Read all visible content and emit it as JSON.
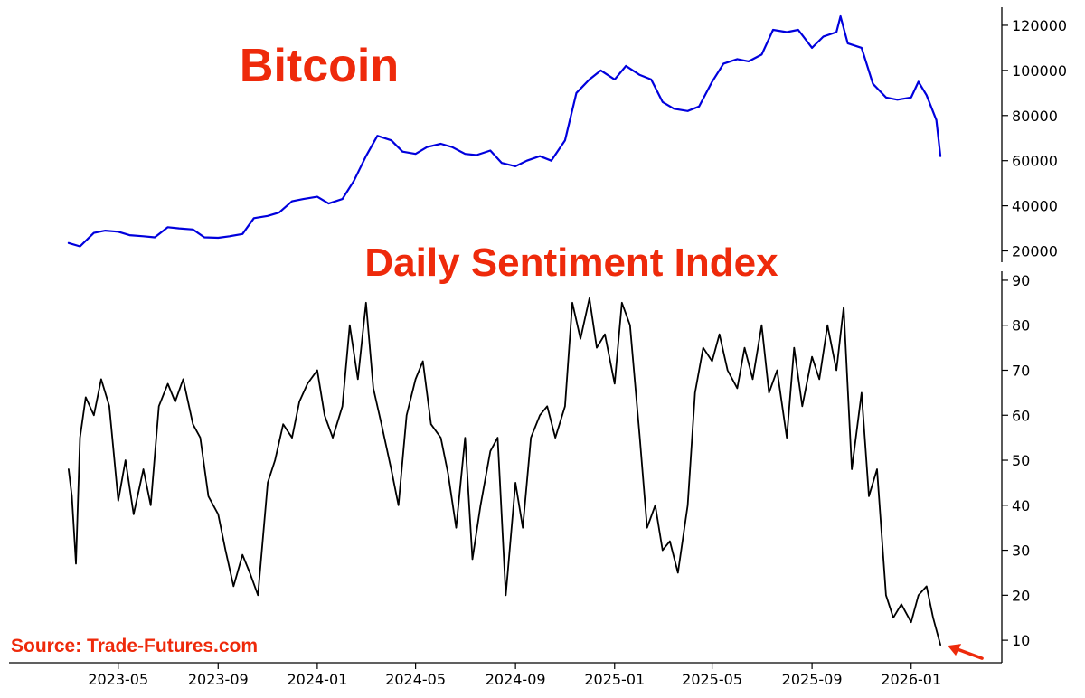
{
  "source": "Source: Trade-Futures.com",
  "colors": {
    "title": "#ee2a0b",
    "bitcoin_line": "#0000dd",
    "sentiment_line": "#000000",
    "arrow": "#ee2a0b"
  },
  "x_ticks": [
    "2023-05",
    "2023-09",
    "2024-01",
    "2024-05",
    "2024-09",
    "2025-01",
    "2025-05",
    "2025-09",
    "2026-01"
  ],
  "chart_data": [
    {
      "type": "line",
      "title": "Bitcoin",
      "xlabel": "",
      "ylabel": "",
      "ylim": [
        15000,
        128000
      ],
      "yticks": [
        "20000",
        "40000",
        "60000",
        "80000",
        "100000",
        "120000"
      ],
      "ytick_values": [
        20000,
        40000,
        60000,
        80000,
        100000,
        120000
      ],
      "grid": false,
      "x": [
        "2023-03-01",
        "2023-03-15",
        "2023-04-01",
        "2023-04-15",
        "2023-05-01",
        "2023-05-15",
        "2023-06-01",
        "2023-06-15",
        "2023-07-01",
        "2023-07-15",
        "2023-08-01",
        "2023-08-15",
        "2023-09-01",
        "2023-09-15",
        "2023-10-01",
        "2023-10-15",
        "2023-11-01",
        "2023-11-15",
        "2023-12-01",
        "2023-12-15",
        "2024-01-01",
        "2024-01-15",
        "2024-02-01",
        "2024-02-15",
        "2024-03-01",
        "2024-03-15",
        "2024-04-01",
        "2024-04-15",
        "2024-05-01",
        "2024-05-15",
        "2024-06-01",
        "2024-06-15",
        "2024-07-01",
        "2024-07-15",
        "2024-08-01",
        "2024-08-15",
        "2024-09-01",
        "2024-09-15",
        "2024-10-01",
        "2024-10-15",
        "2024-11-01",
        "2024-11-15",
        "2024-12-01",
        "2024-12-15",
        "2025-01-01",
        "2025-01-15",
        "2025-02-01",
        "2025-02-15",
        "2025-03-01",
        "2025-03-15",
        "2025-04-01",
        "2025-04-15",
        "2025-05-01",
        "2025-05-15",
        "2025-06-01",
        "2025-06-15",
        "2025-07-01",
        "2025-07-15",
        "2025-08-01",
        "2025-08-15",
        "2025-09-01",
        "2025-09-15",
        "2025-10-01",
        "2025-10-06",
        "2025-10-15",
        "2025-11-01",
        "2025-11-15",
        "2025-12-01",
        "2025-12-15",
        "2026-01-01",
        "2026-01-10",
        "2026-01-20",
        "2026-02-01",
        "2026-02-06"
      ],
      "series": [
        {
          "values": [
            23500,
            22000,
            28000,
            29000,
            28500,
            27000,
            26500,
            26000,
            30500,
            30000,
            29500,
            26000,
            25800,
            26500,
            27500,
            34500,
            35500,
            37000,
            42000,
            43000,
            44000,
            41000,
            43000,
            51000,
            62000,
            71000,
            69000,
            64000,
            63000,
            66000,
            67500,
            66000,
            63000,
            62500,
            64500,
            59000,
            57500,
            60000,
            62000,
            60000,
            69000,
            90000,
            96000,
            100000,
            96000,
            102000,
            98000,
            96000,
            86000,
            83000,
            82000,
            84000,
            95000,
            103000,
            105000,
            104000,
            107000,
            118000,
            117000,
            118000,
            110000,
            115000,
            117000,
            124000,
            112000,
            110000,
            94000,
            88000,
            87000,
            88000,
            95000,
            89000,
            78000,
            62000
          ]
        }
      ]
    },
    {
      "type": "line",
      "title": "Daily Sentiment Index",
      "xlabel": "",
      "ylabel": "",
      "ylim": [
        5,
        92
      ],
      "yticks": [
        "10",
        "20",
        "30",
        "40",
        "50",
        "60",
        "70",
        "80",
        "90"
      ],
      "ytick_values": [
        10,
        20,
        30,
        40,
        50,
        60,
        70,
        80,
        90
      ],
      "grid": false,
      "x": [
        "2023-03-01",
        "2023-03-05",
        "2023-03-10",
        "2023-03-15",
        "2023-03-22",
        "2023-04-01",
        "2023-04-10",
        "2023-04-20",
        "2023-05-01",
        "2023-05-10",
        "2023-05-20",
        "2023-06-01",
        "2023-06-10",
        "2023-06-20",
        "2023-07-01",
        "2023-07-10",
        "2023-07-20",
        "2023-08-01",
        "2023-08-10",
        "2023-08-20",
        "2023-09-01",
        "2023-09-10",
        "2023-09-20",
        "2023-10-01",
        "2023-10-10",
        "2023-10-20",
        "2023-11-01",
        "2023-11-10",
        "2023-11-20",
        "2023-12-01",
        "2023-12-10",
        "2023-12-20",
        "2024-01-01",
        "2024-01-10",
        "2024-01-20",
        "2024-02-01",
        "2024-02-10",
        "2024-02-20",
        "2024-03-01",
        "2024-03-10",
        "2024-03-20",
        "2024-04-01",
        "2024-04-10",
        "2024-04-20",
        "2024-05-01",
        "2024-05-10",
        "2024-05-20",
        "2024-06-01",
        "2024-06-10",
        "2024-06-20",
        "2024-07-01",
        "2024-07-10",
        "2024-07-20",
        "2024-08-01",
        "2024-08-10",
        "2024-08-20",
        "2024-09-01",
        "2024-09-10",
        "2024-09-20",
        "2024-10-01",
        "2024-10-10",
        "2024-10-20",
        "2024-11-01",
        "2024-11-10",
        "2024-11-20",
        "2024-12-01",
        "2024-12-10",
        "2024-12-20",
        "2025-01-01",
        "2025-01-10",
        "2025-01-20",
        "2025-02-01",
        "2025-02-10",
        "2025-02-20",
        "2025-03-01",
        "2025-03-10",
        "2025-03-20",
        "2025-04-01",
        "2025-04-10",
        "2025-04-20",
        "2025-05-01",
        "2025-05-10",
        "2025-05-20",
        "2025-06-01",
        "2025-06-10",
        "2025-06-20",
        "2025-07-01",
        "2025-07-10",
        "2025-07-20",
        "2025-08-01",
        "2025-08-10",
        "2025-08-20",
        "2025-09-01",
        "2025-09-10",
        "2025-09-20",
        "2025-10-01",
        "2025-10-10",
        "2025-10-20",
        "2025-11-01",
        "2025-11-10",
        "2025-11-20",
        "2025-12-01",
        "2025-12-10",
        "2025-12-20",
        "2026-01-01",
        "2026-01-10",
        "2026-01-20",
        "2026-01-28",
        "2026-02-06"
      ],
      "series": [
        {
          "values": [
            48,
            42,
            27,
            55,
            64,
            60,
            68,
            62,
            41,
            50,
            38,
            48,
            40,
            62,
            67,
            63,
            68,
            58,
            55,
            42,
            38,
            30,
            22,
            29,
            25,
            20,
            45,
            50,
            58,
            55,
            63,
            67,
            70,
            60,
            55,
            62,
            80,
            68,
            85,
            66,
            58,
            48,
            40,
            60,
            68,
            72,
            58,
            55,
            47,
            35,
            55,
            28,
            40,
            52,
            55,
            20,
            45,
            35,
            55,
            60,
            62,
            55,
            62,
            85,
            77,
            86,
            75,
            78,
            67,
            85,
            80,
            55,
            35,
            40,
            30,
            32,
            25,
            40,
            65,
            75,
            72,
            78,
            70,
            66,
            75,
            68,
            80,
            65,
            70,
            55,
            75,
            62,
            73,
            68,
            80,
            70,
            84,
            48,
            65,
            42,
            48,
            20,
            15,
            18,
            14,
            20,
            22,
            15,
            9
          ]
        }
      ]
    }
  ]
}
